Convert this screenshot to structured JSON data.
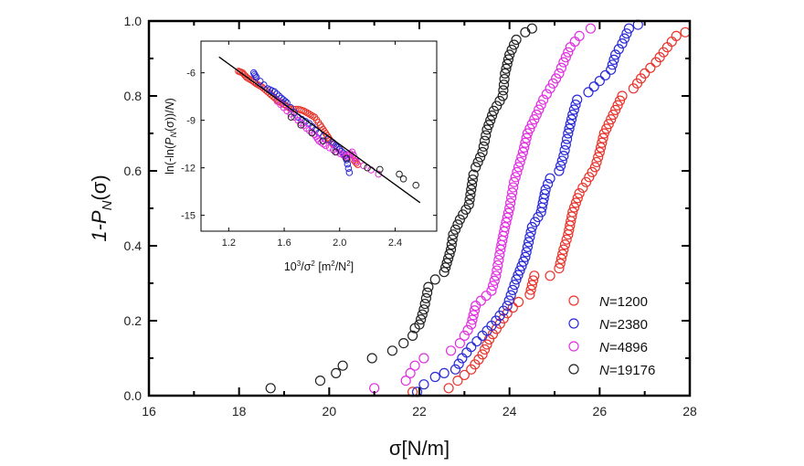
{
  "chart_data": [
    {
      "type": "scatter",
      "title": "",
      "xlabel": {
        "pre": "σ[N/m]"
      },
      "ylabel": {
        "pre": "1-P",
        "sub": "N",
        "post": "(σ)"
      },
      "xlim": [
        16,
        28
      ],
      "ylim": [
        0,
        1
      ],
      "xticks": [
        "16",
        "18",
        "20",
        "22",
        "24",
        "26",
        "28"
      ],
      "yticks": [
        "0.0",
        "0.2",
        "0.4",
        "0.6",
        "0.8",
        "1.0"
      ],
      "legend_position": "bottom-right",
      "series": [
        {
          "name_var": "N",
          "name_val": "=1200",
          "color": "#e8352c",
          "points": [
            [
              21.85,
              0.01
            ],
            [
              22.65,
              0.02
            ],
            [
              22.85,
              0.04
            ],
            [
              23.15,
              0.07
            ],
            [
              23.4,
              0.11
            ],
            [
              23.55,
              0.15
            ],
            [
              23.95,
              0.22
            ],
            [
              24.2,
              0.25
            ],
            [
              24.45,
              0.27
            ],
            [
              24.55,
              0.32
            ],
            [
              24.9,
              0.32
            ],
            [
              25.1,
              0.34
            ],
            [
              25.2,
              0.39
            ],
            [
              25.3,
              0.43
            ],
            [
              25.4,
              0.49
            ],
            [
              25.55,
              0.54
            ],
            [
              25.7,
              0.57
            ],
            [
              25.9,
              0.61
            ],
            [
              26.0,
              0.65
            ],
            [
              26.1,
              0.7
            ],
            [
              26.3,
              0.75
            ],
            [
              26.5,
              0.8
            ],
            [
              26.75,
              0.82
            ],
            [
              27.0,
              0.86
            ],
            [
              27.25,
              0.89
            ],
            [
              27.5,
              0.93
            ],
            [
              27.7,
              0.96
            ],
            [
              27.9,
              0.97
            ]
          ]
        },
        {
          "name_var": "N",
          "name_val": "=2380",
          "color": "#2a2ad6",
          "points": [
            [
              21.95,
              0.01
            ],
            [
              22.1,
              0.03
            ],
            [
              22.35,
              0.05
            ],
            [
              22.55,
              0.06
            ],
            [
              22.8,
              0.07
            ],
            [
              22.95,
              0.1
            ],
            [
              23.15,
              0.13
            ],
            [
              23.4,
              0.16
            ],
            [
              23.7,
              0.2
            ],
            [
              23.95,
              0.24
            ],
            [
              24.15,
              0.31
            ],
            [
              24.35,
              0.37
            ],
            [
              24.5,
              0.45
            ],
            [
              24.7,
              0.49
            ],
            [
              24.8,
              0.55
            ],
            [
              24.9,
              0.58
            ],
            [
              25.1,
              0.6
            ],
            [
              25.2,
              0.64
            ],
            [
              25.3,
              0.7
            ],
            [
              25.4,
              0.75
            ],
            [
              25.5,
              0.79
            ],
            [
              25.75,
              0.81
            ],
            [
              26.0,
              0.84
            ],
            [
              26.25,
              0.87
            ],
            [
              26.35,
              0.91
            ],
            [
              26.5,
              0.94
            ],
            [
              26.65,
              0.98
            ],
            [
              26.85,
              0.99
            ]
          ]
        },
        {
          "name_var": "N",
          "name_val": "=4896",
          "color": "#e030e0",
          "points": [
            [
              21.0,
              0.02
            ],
            [
              21.7,
              0.04
            ],
            [
              21.8,
              0.06
            ],
            [
              21.9,
              0.08
            ],
            [
              22.1,
              0.1
            ],
            [
              22.7,
              0.12
            ],
            [
              22.9,
              0.14
            ],
            [
              23.0,
              0.16
            ],
            [
              23.15,
              0.19
            ],
            [
              23.25,
              0.24
            ],
            [
              23.6,
              0.28
            ],
            [
              23.7,
              0.32
            ],
            [
              23.8,
              0.39
            ],
            [
              23.9,
              0.45
            ],
            [
              24.0,
              0.5
            ],
            [
              24.1,
              0.57
            ],
            [
              24.2,
              0.61
            ],
            [
              24.3,
              0.65
            ],
            [
              24.4,
              0.7
            ],
            [
              24.6,
              0.75
            ],
            [
              24.75,
              0.79
            ],
            [
              24.9,
              0.82
            ],
            [
              25.1,
              0.86
            ],
            [
              25.2,
              0.89
            ],
            [
              25.35,
              0.93
            ],
            [
              25.55,
              0.96
            ],
            [
              25.8,
              0.98
            ]
          ]
        },
        {
          "name_var": "N",
          "name_val": "=19176",
          "color": "#222222",
          "points": [
            [
              18.7,
              0.02
            ],
            [
              19.8,
              0.04
            ],
            [
              20.15,
              0.06
            ],
            [
              20.3,
              0.08
            ],
            [
              20.95,
              0.1
            ],
            [
              21.4,
              0.12
            ],
            [
              21.65,
              0.14
            ],
            [
              21.85,
              0.16
            ],
            [
              21.9,
              0.18
            ],
            [
              22.0,
              0.19
            ],
            [
              22.1,
              0.23
            ],
            [
              22.2,
              0.29
            ],
            [
              22.35,
              0.31
            ],
            [
              22.55,
              0.33
            ],
            [
              22.7,
              0.39
            ],
            [
              22.75,
              0.43
            ],
            [
              22.9,
              0.47
            ],
            [
              23.1,
              0.51
            ],
            [
              23.2,
              0.59
            ],
            [
              23.25,
              0.61
            ],
            [
              23.4,
              0.65
            ],
            [
              23.5,
              0.71
            ],
            [
              23.65,
              0.76
            ],
            [
              23.85,
              0.8
            ],
            [
              23.9,
              0.86
            ],
            [
              24.0,
              0.91
            ],
            [
              24.15,
              0.95
            ],
            [
              24.35,
              0.97
            ],
            [
              24.5,
              0.98
            ]
          ]
        }
      ]
    },
    {
      "type": "scatter",
      "title": "",
      "xlabel": {
        "pre": "10",
        "sup1": "3",
        "mid": "/σ",
        "sup2": "2",
        "post1": " [m",
        "sup3": "2",
        "post2": "/N",
        "sup4": "2",
        "post3": "]"
      },
      "ylabel": {
        "pre": "ln(-ln(",
        "var": "P",
        "sub": "N",
        "mid": "(σ))/",
        "var2": "N",
        "post": ")"
      },
      "xlim": [
        1.0,
        2.7
      ],
      "ylim": [
        -16,
        -4
      ],
      "xticks": [
        "1.2",
        "1.6",
        "2.0",
        "2.4"
      ],
      "yticks": [
        "-6",
        "-9",
        "-12",
        "-15"
      ],
      "fit_line": [
        [
          1.13,
          -5.0
        ],
        [
          2.58,
          -14.2
        ]
      ],
      "series": [
        {
          "color": "#e8352c",
          "points": [
            [
              1.27,
              -5.9
            ],
            [
              1.3,
              -6.0
            ],
            [
              1.33,
              -6.3
            ],
            [
              1.37,
              -6.5
            ],
            [
              1.4,
              -6.7
            ],
            [
              1.44,
              -6.9
            ],
            [
              1.48,
              -7.2
            ],
            [
              1.52,
              -7.5
            ],
            [
              1.56,
              -7.8
            ],
            [
              1.6,
              -8.0
            ],
            [
              1.65,
              -8.3
            ],
            [
              1.7,
              -8.3
            ],
            [
              1.74,
              -8.4
            ],
            [
              1.78,
              -8.6
            ],
            [
              1.82,
              -8.8
            ],
            [
              1.86,
              -9.3
            ],
            [
              1.89,
              -9.7
            ],
            [
              1.92,
              -10.1
            ],
            [
              1.95,
              -10.5
            ],
            [
              2.1,
              -11.5
            ],
            [
              2.13,
              -11.8
            ]
          ]
        },
        {
          "color": "#2a2ad6",
          "points": [
            [
              1.38,
              -6.0
            ],
            [
              1.4,
              -6.3
            ],
            [
              1.48,
              -7.0
            ],
            [
              1.53,
              -7.2
            ],
            [
              1.58,
              -7.6
            ],
            [
              1.62,
              -7.9
            ],
            [
              1.7,
              -8.8
            ],
            [
              1.78,
              -9.2
            ],
            [
              1.85,
              -9.8
            ],
            [
              1.95,
              -10.4
            ],
            [
              1.98,
              -10.7
            ],
            [
              2.03,
              -11.1
            ],
            [
              2.05,
              -11.5
            ],
            [
              2.07,
              -12.3
            ]
          ]
        },
        {
          "color": "#e030e0",
          "points": [
            [
              1.55,
              -7.8
            ],
            [
              1.62,
              -8.4
            ],
            [
              1.7,
              -9.0
            ],
            [
              1.76,
              -9.5
            ],
            [
              1.82,
              -9.9
            ],
            [
              1.85,
              -10.3
            ],
            [
              1.9,
              -10.6
            ],
            [
              1.98,
              -11.0
            ],
            [
              2.05,
              -11.3
            ],
            [
              2.09,
              -11.0
            ],
            [
              2.12,
              -11.6
            ],
            [
              2.28,
              -12.4
            ]
          ]
        },
        {
          "color": "#222222",
          "points": [
            [
              1.65,
              -8.8
            ],
            [
              1.72,
              -9.3
            ],
            [
              1.8,
              -9.8
            ],
            [
              1.88,
              -10.3
            ],
            [
              1.97,
              -11.0
            ],
            [
              2.05,
              -11.4
            ],
            [
              2.2,
              -12.0
            ],
            [
              2.29,
              -12.1
            ],
            [
              2.43,
              -12.4
            ],
            [
              2.46,
              -12.7
            ],
            [
              2.55,
              -13.1
            ]
          ]
        }
      ]
    }
  ]
}
